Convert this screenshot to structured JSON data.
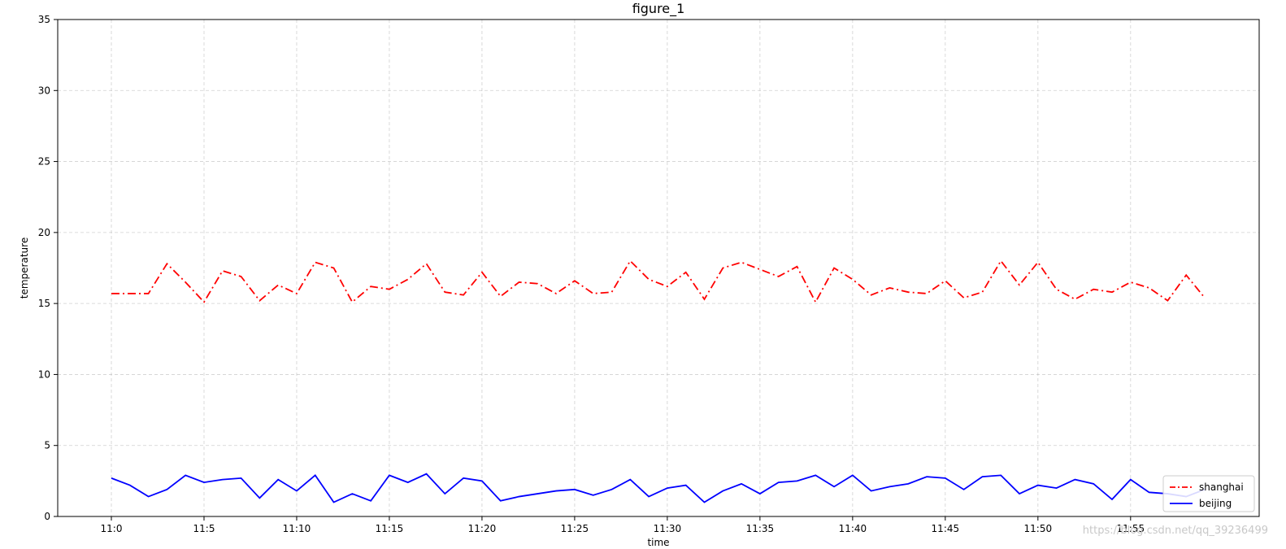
{
  "chart_data": {
    "type": "line",
    "title": "figure_1",
    "xlabel": "time",
    "ylabel": "temperature",
    "ylim": [
      0,
      35
    ],
    "yticks": [
      0,
      5,
      10,
      15,
      20,
      25,
      30,
      35
    ],
    "x": [
      "11:0",
      "11:1",
      "11:2",
      "11:3",
      "11:4",
      "11:5",
      "11:6",
      "11:7",
      "11:8",
      "11:9",
      "11:10",
      "11:11",
      "11:12",
      "11:13",
      "11:14",
      "11:15",
      "11:16",
      "11:17",
      "11:18",
      "11:19",
      "11:20",
      "11:21",
      "11:22",
      "11:23",
      "11:24",
      "11:25",
      "11:26",
      "11:27",
      "11:28",
      "11:29",
      "11:30",
      "11:31",
      "11:32",
      "11:33",
      "11:34",
      "11:35",
      "11:36",
      "11:37",
      "11:38",
      "11:39",
      "11:40",
      "11:41",
      "11:42",
      "11:43",
      "11:44",
      "11:45",
      "11:46",
      "11:47",
      "11:48",
      "11:49",
      "11:50",
      "11:51",
      "11:52",
      "11:53",
      "11:54",
      "11:55",
      "11:56",
      "11:57",
      "11:58",
      "11:59"
    ],
    "xticks": [
      "11:0",
      "11:5",
      "11:10",
      "11:15",
      "11:20",
      "11:25",
      "11:30",
      "11:35",
      "11:40",
      "11:45",
      "11:50",
      "11:55"
    ],
    "grid": true,
    "legend_position": "lower-right",
    "series": [
      {
        "name": "shanghai",
        "color": "#ff0000",
        "linestyle": "dashdot",
        "values": [
          15.7,
          15.7,
          15.7,
          17.8,
          16.5,
          15.1,
          17.3,
          16.9,
          15.2,
          16.3,
          15.7,
          17.9,
          17.5,
          15.1,
          16.2,
          16.0,
          16.7,
          17.8,
          15.8,
          15.6,
          17.2,
          15.5,
          16.5,
          16.4,
          15.7,
          16.6,
          15.7,
          15.8,
          18.0,
          16.7,
          16.2,
          17.2,
          15.3,
          17.5,
          17.9,
          17.4,
          16.9,
          17.6,
          15.1,
          17.5,
          16.7,
          15.6,
          16.1,
          15.8,
          15.7,
          16.6,
          15.4,
          15.8,
          18.0,
          16.3,
          17.9,
          16.0,
          15.3,
          16.0,
          15.8,
          16.5,
          16.1,
          15.2,
          17.0,
          15.4
        ]
      },
      {
        "name": "beijing",
        "color": "#0000ff",
        "linestyle": "solid",
        "values": [
          2.7,
          2.2,
          1.4,
          1.9,
          2.9,
          2.4,
          2.6,
          2.7,
          1.3,
          2.6,
          1.8,
          2.9,
          1.0,
          1.6,
          1.1,
          2.9,
          2.4,
          3.0,
          1.6,
          2.7,
          2.5,
          1.1,
          1.4,
          1.6,
          1.8,
          1.9,
          1.5,
          1.9,
          2.6,
          1.4,
          2.0,
          2.2,
          1.0,
          1.8,
          2.3,
          1.6,
          2.4,
          2.5,
          2.9,
          2.1,
          2.9,
          1.8,
          2.1,
          2.3,
          2.8,
          2.7,
          1.9,
          2.8,
          2.9,
          1.6,
          2.2,
          2.0,
          2.6,
          2.3,
          1.2,
          2.6,
          1.7,
          1.6,
          1.4,
          1.9
        ]
      }
    ]
  },
  "watermark": "https://blog.csdn.net/qq_39236499"
}
